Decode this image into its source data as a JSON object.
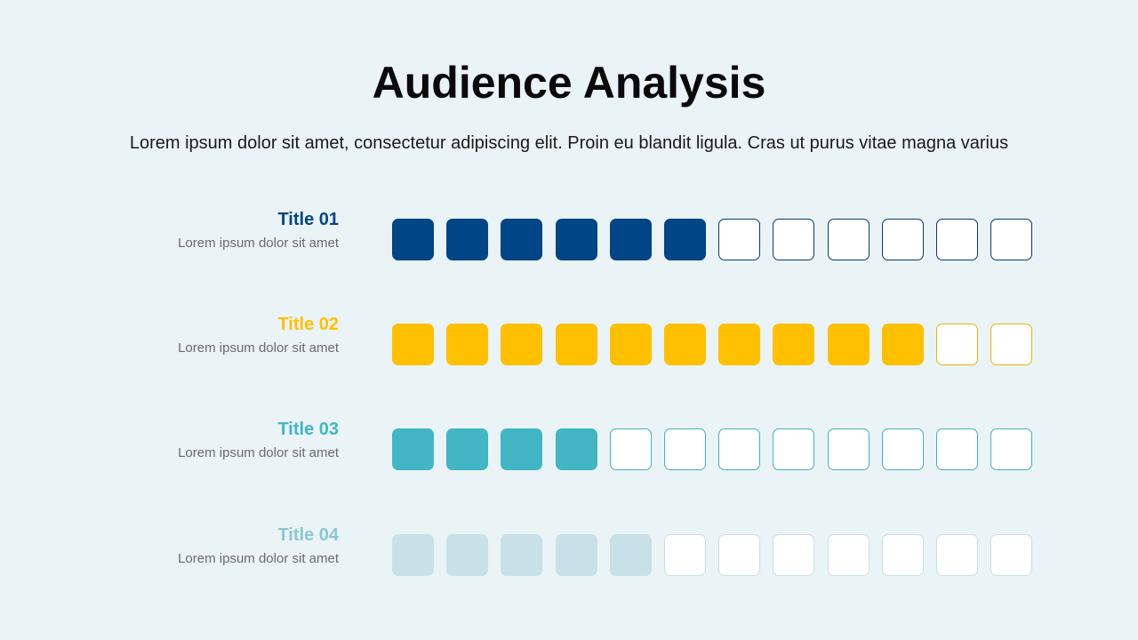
{
  "title": "Audience Analysis",
  "subtitle": "Lorem ipsum dolor sit amet, consectetur adipiscing elit. Proin eu blandit ligula. Cras ut purus vitae magna varius",
  "chart_data": {
    "type": "table",
    "total_cells": 12,
    "series": [
      {
        "name": "Title 01",
        "description": "Lorem ipsum dolor sit amet",
        "value": 6,
        "color": "#004586",
        "outline": "#0b3a66"
      },
      {
        "name": "Title 02",
        "description": "Lorem ipsum dolor sit amet",
        "value": 10,
        "color": "#ffc000",
        "outline": "#e8b500"
      },
      {
        "name": "Title 03",
        "description": "Lorem ipsum dolor sit amet",
        "value": 4,
        "color": "#42b6c4",
        "outline": "#42b0be"
      },
      {
        "name": "Title 04",
        "description": "Lorem ipsum dolor sit amet",
        "value": 5,
        "color": "#c8e1e7",
        "outline": "#c8dfe5"
      }
    ]
  },
  "colors": {
    "background": "#eaf3f6",
    "title_04_text": "#8dc7d2"
  }
}
